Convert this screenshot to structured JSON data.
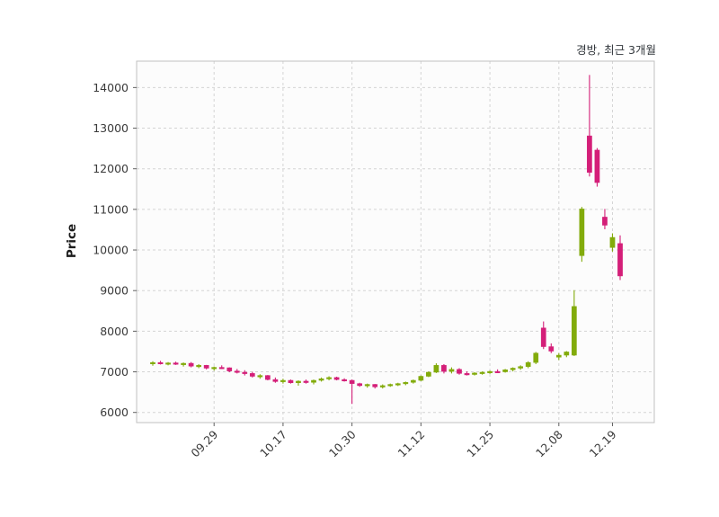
{
  "header": {
    "title": "경방, 최근 3개월"
  },
  "colors": {
    "up": "#82ab0b",
    "down": "#d41e78",
    "grid": "#d4d4d4",
    "axis_border": "#c0c0c0",
    "tick_mark": "#606060",
    "tick_text": "#3a3a3a",
    "title_text": "#33383d",
    "plot_background": "#fcfcfc",
    "figure_background": "#ffffff"
  },
  "chart_data": {
    "type": "candlestick",
    "title": "경방, 최근 3개월",
    "xlabel": "",
    "ylabel": "Price",
    "ylim": [
      5750,
      14650
    ],
    "yticks": [
      6000,
      7000,
      8000,
      9000,
      10000,
      11000,
      12000,
      13000,
      14000
    ],
    "grid": true,
    "legend": "none",
    "xticks": [
      {
        "index": 8,
        "label": "09.29"
      },
      {
        "index": 17,
        "label": "10.17"
      },
      {
        "index": 26,
        "label": "10.30"
      },
      {
        "index": 35,
        "label": "11.12"
      },
      {
        "index": 44,
        "label": "11.25"
      },
      {
        "index": 53,
        "label": "12.08"
      },
      {
        "index": 60,
        "label": "12.19"
      }
    ],
    "columns": [
      "open",
      "high",
      "low",
      "close"
    ],
    "candles": [
      [
        7200,
        7260,
        7150,
        7230
      ],
      [
        7230,
        7270,
        7180,
        7200
      ],
      [
        7200,
        7240,
        7160,
        7220
      ],
      [
        7220,
        7250,
        7170,
        7190
      ],
      [
        7190,
        7230,
        7130,
        7210
      ],
      [
        7210,
        7240,
        7110,
        7140
      ],
      [
        7140,
        7190,
        7090,
        7160
      ],
      [
        7160,
        7170,
        7060,
        7090
      ],
      [
        7090,
        7130,
        7030,
        7110
      ],
      [
        7110,
        7160,
        7070,
        7100
      ],
      [
        7100,
        7110,
        6990,
        7020
      ],
      [
        7020,
        7070,
        6960,
        6990
      ],
      [
        6990,
        7040,
        6910,
        6960
      ],
      [
        6960,
        7000,
        6860,
        6890
      ],
      [
        6890,
        6940,
        6830,
        6910
      ],
      [
        6910,
        6920,
        6790,
        6810
      ],
      [
        6810,
        6860,
        6730,
        6760
      ],
      [
        6760,
        6830,
        6710,
        6790
      ],
      [
        6790,
        6810,
        6710,
        6730
      ],
      [
        6730,
        6790,
        6660,
        6770
      ],
      [
        6770,
        6810,
        6710,
        6740
      ],
      [
        6740,
        6810,
        6690,
        6790
      ],
      [
        6790,
        6860,
        6760,
        6830
      ],
      [
        6830,
        6890,
        6790,
        6860
      ],
      [
        6860,
        6880,
        6790,
        6810
      ],
      [
        6810,
        6840,
        6760,
        6790
      ],
      [
        6790,
        6810,
        6210,
        6710
      ],
      [
        6710,
        6730,
        6630,
        6660
      ],
      [
        6660,
        6710,
        6610,
        6690
      ],
      [
        6690,
        6700,
        6590,
        6630
      ],
      [
        6630,
        6690,
        6590,
        6660
      ],
      [
        6660,
        6710,
        6630,
        6690
      ],
      [
        6690,
        6730,
        6650,
        6710
      ],
      [
        6710,
        6760,
        6670,
        6740
      ],
      [
        6740,
        6810,
        6710,
        6790
      ],
      [
        6790,
        6910,
        6770,
        6890
      ],
      [
        6890,
        7010,
        6870,
        6990
      ],
      [
        6990,
        7210,
        6970,
        7160
      ],
      [
        7160,
        7190,
        6960,
        7010
      ],
      [
        7010,
        7110,
        6960,
        7060
      ],
      [
        7060,
        7090,
        6930,
        6960
      ],
      [
        6960,
        7010,
        6910,
        6940
      ],
      [
        6940,
        6990,
        6910,
        6970
      ],
      [
        6970,
        7010,
        6930,
        6990
      ],
      [
        6990,
        7030,
        6950,
        7010
      ],
      [
        7010,
        7060,
        6970,
        7000
      ],
      [
        7000,
        7070,
        6980,
        7050
      ],
      [
        7050,
        7110,
        7010,
        7090
      ],
      [
        7090,
        7160,
        7050,
        7130
      ],
      [
        7130,
        7260,
        7090,
        7230
      ],
      [
        7230,
        7490,
        7190,
        7460
      ],
      [
        8080,
        8240,
        7560,
        7620
      ],
      [
        7620,
        7700,
        7460,
        7510
      ],
      [
        7360,
        7460,
        7290,
        7410
      ],
      [
        7410,
        7510,
        7360,
        7490
      ],
      [
        7410,
        9010,
        7390,
        8610
      ],
      [
        9860,
        11060,
        9710,
        11010
      ],
      [
        12810,
        14310,
        11810,
        11910
      ],
      [
        12460,
        12510,
        11560,
        11660
      ],
      [
        10810,
        11010,
        10510,
        10610
      ],
      [
        10060,
        10410,
        9960,
        10310
      ],
      [
        10160,
        10360,
        9260,
        9360
      ]
    ]
  }
}
